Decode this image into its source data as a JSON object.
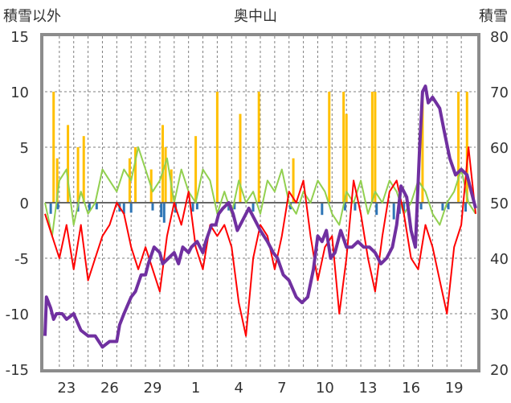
{
  "chart_data": {
    "type": "line",
    "title": "奥中山",
    "ylabel_left": "積雪以外",
    "ylabel_right": "積雪",
    "y_left": {
      "min": -15,
      "max": 15,
      "ticks": [
        "15",
        "10",
        "5",
        "0",
        "-5",
        "-10",
        "-15"
      ]
    },
    "y_right": {
      "min": 20,
      "max": 80,
      "ticks": [
        "80",
        "70",
        "60",
        "50",
        "40",
        "30",
        "20"
      ]
    },
    "x_range": [
      0,
      30
    ],
    "x_ticks": [
      {
        "x": 1.5,
        "label": "23"
      },
      {
        "x": 4.5,
        "label": "26"
      },
      {
        "x": 7.5,
        "label": "29"
      },
      {
        "x": 10.5,
        "label": "1"
      },
      {
        "x": 13.5,
        "label": "4"
      },
      {
        "x": 16.5,
        "label": "7"
      },
      {
        "x": 19.5,
        "label": "10"
      },
      {
        "x": 22.5,
        "label": "13"
      },
      {
        "x": 25.5,
        "label": "16"
      },
      {
        "x": 28.5,
        "label": "19"
      }
    ],
    "grid": "vertical dashed at day boundaries, horizontal dashed at left-axis ticks",
    "precip_bars": [
      {
        "x": 0.6,
        "v": 10
      },
      {
        "x": 0.85,
        "v": 4
      },
      {
        "x": 1.6,
        "v": 7
      },
      {
        "x": 2.3,
        "v": 5
      },
      {
        "x": 2.7,
        "v": 6
      },
      {
        "x": 5.9,
        "v": 4
      },
      {
        "x": 6.3,
        "v": 5
      },
      {
        "x": 7.4,
        "v": 3
      },
      {
        "x": 8.2,
        "v": 7
      },
      {
        "x": 8.4,
        "v": 5
      },
      {
        "x": 8.8,
        "v": 3
      },
      {
        "x": 10.5,
        "v": 6
      },
      {
        "x": 12.0,
        "v": 10
      },
      {
        "x": 13.6,
        "v": 8
      },
      {
        "x": 14.9,
        "v": 10
      },
      {
        "x": 17.3,
        "v": 4
      },
      {
        "x": 19.8,
        "v": 10
      },
      {
        "x": 20.8,
        "v": 10
      },
      {
        "x": 21.0,
        "v": 8
      },
      {
        "x": 22.8,
        "v": 10
      },
      {
        "x": 23.0,
        "v": 10
      },
      {
        "x": 26.3,
        "v": 10
      },
      {
        "x": 28.8,
        "v": 10
      },
      {
        "x": 29.4,
        "v": 10
      }
    ],
    "snowfall_bars": [
      {
        "x": 0.4,
        "v": -1
      },
      {
        "x": 0.9,
        "v": -0.6
      },
      {
        "x": 2.3,
        "v": -0.8
      },
      {
        "x": 3.1,
        "v": -0.7
      },
      {
        "x": 3.6,
        "v": -0.6
      },
      {
        "x": 5.2,
        "v": -0.8
      },
      {
        "x": 5.5,
        "v": -1
      },
      {
        "x": 6.0,
        "v": -0.9
      },
      {
        "x": 7.5,
        "v": -0.7
      },
      {
        "x": 8.1,
        "v": -1.3
      },
      {
        "x": 8.3,
        "v": -1.8
      },
      {
        "x": 9.1,
        "v": -0.9
      },
      {
        "x": 10.3,
        "v": -0.8
      },
      {
        "x": 10.6,
        "v": -0.6
      },
      {
        "x": 12.8,
        "v": -0.7
      },
      {
        "x": 13.2,
        "v": -0.6
      },
      {
        "x": 14.5,
        "v": -0.8
      },
      {
        "x": 17.1,
        "v": -0.6
      },
      {
        "x": 19.3,
        "v": -1.1
      },
      {
        "x": 20.9,
        "v": -0.7
      },
      {
        "x": 21.6,
        "v": -0.7
      },
      {
        "x": 23.1,
        "v": -1.1
      },
      {
        "x": 24.3,
        "v": -1.5
      },
      {
        "x": 24.7,
        "v": -1
      },
      {
        "x": 25.0,
        "v": -0.9
      },
      {
        "x": 26.2,
        "v": -0.6
      },
      {
        "x": 27.7,
        "v": -0.7
      },
      {
        "x": 28.1,
        "v": -0.6
      },
      {
        "x": 29.3,
        "v": -0.8
      }
    ],
    "temperature": {
      "x": [
        0,
        0.5,
        1,
        1.5,
        2,
        2.5,
        3,
        3.5,
        4,
        4.5,
        5,
        5.5,
        6,
        6.5,
        7,
        7.5,
        8,
        8.5,
        9,
        9.5,
        10,
        10.5,
        11,
        11.5,
        12,
        12.5,
        13,
        13.5,
        14,
        14.5,
        15,
        15.5,
        16,
        16.5,
        17,
        17.5,
        18,
        18.5,
        19,
        19.5,
        20,
        20.5,
        21,
        21.5,
        22,
        22.5,
        23,
        23.5,
        24,
        24.5,
        25,
        25.5,
        26,
        26.5,
        27,
        27.5,
        28,
        28.5,
        29,
        29.5,
        30
      ],
      "y": [
        -1,
        -3,
        -5,
        -2,
        -6,
        -2,
        -7,
        -5,
        -3,
        -2,
        0,
        -1,
        -4,
        -6,
        -4,
        -6,
        -8,
        -3,
        0,
        -2,
        1,
        -4,
        -6,
        -2,
        -3,
        -2,
        -4,
        -9,
        -12,
        -5,
        -2,
        -3,
        -6,
        -3,
        1,
        0,
        2,
        -3,
        -7,
        -4,
        -3,
        -10,
        -5,
        2,
        -1,
        -5,
        -8,
        -3,
        1,
        2,
        -1,
        -5,
        -6,
        -2,
        -4,
        -7,
        -10,
        -4,
        -2,
        5,
        -1
      ]
    },
    "wind": {
      "x": [
        0,
        0.5,
        1,
        1.5,
        2,
        2.5,
        3,
        3.5,
        4,
        4.5,
        5,
        5.5,
        6,
        6.5,
        7,
        7.5,
        8,
        8.5,
        9,
        9.5,
        10,
        10.5,
        11,
        11.5,
        12,
        12.5,
        13,
        13.5,
        14,
        14.5,
        15,
        15.5,
        16,
        16.5,
        17,
        17.5,
        18,
        18.5,
        19,
        19.5,
        20,
        20.5,
        21,
        21.5,
        22,
        22.5,
        23,
        23.5,
        24,
        24.5,
        25,
        25.5,
        26,
        26.5,
        27,
        27.5,
        28,
        28.5,
        29,
        29.5,
        30
      ],
      "y": [
        0,
        -3,
        2,
        3,
        -2,
        1,
        -1,
        0,
        3,
        2,
        1,
        3,
        2,
        5,
        3,
        1,
        2,
        4,
        0,
        3,
        1,
        0,
        3,
        2,
        -1,
        1,
        -1,
        2,
        0,
        1,
        -1,
        2,
        1,
        3,
        0,
        -1,
        1,
        0,
        2,
        1,
        -1,
        -2,
        1,
        0,
        2,
        -1,
        1,
        0,
        2,
        1,
        -1,
        0,
        2,
        1,
        -1,
        -2,
        0,
        1,
        3,
        0,
        -1
      ]
    },
    "snow_depth": {
      "x": [
        0,
        0.1,
        0.4,
        0.6,
        0.8,
        1.0,
        1.2,
        1.5,
        2.0,
        2.5,
        3.0,
        3.5,
        4.0,
        4.5,
        5.0,
        5.2,
        5.5,
        6.0,
        6.3,
        6.7,
        7.0,
        7.2,
        7.6,
        8.0,
        8.2,
        8.6,
        9.0,
        9.3,
        9.6,
        10.0,
        10.2,
        10.6,
        11.0,
        11.2,
        11.6,
        11.9,
        12.1,
        12.4,
        12.8,
        13.1,
        13.4,
        13.8,
        14.2,
        14.6,
        15.0,
        15.5,
        15.9,
        16.2,
        16.6,
        17.0,
        17.5,
        17.9,
        18.3,
        18.7,
        19.0,
        19.3,
        19.6,
        19.9,
        20.2,
        20.6,
        21.0,
        21.4,
        21.8,
        22.2,
        22.6,
        23.0,
        23.4,
        23.8,
        24.2,
        24.5,
        24.8,
        25.2,
        25.5,
        25.8,
        26.1,
        26.3,
        26.5,
        26.7,
        27.0,
        27.5,
        27.8,
        28.2,
        28.6,
        29.0,
        29.4,
        29.7,
        30.0
      ],
      "y": [
        26,
        33,
        31,
        29,
        30,
        30,
        30,
        29,
        30,
        27,
        26,
        26,
        24,
        25,
        25,
        28,
        30,
        33,
        34,
        37,
        37,
        39,
        42,
        41,
        39,
        40,
        41,
        39,
        42,
        41,
        42,
        43,
        41,
        43,
        46,
        46,
        48,
        49,
        50,
        48,
        45,
        47,
        49,
        47,
        45,
        43,
        41,
        40,
        37,
        36,
        33,
        32,
        33,
        38,
        44,
        43,
        45,
        40,
        41,
        45,
        42,
        42,
        43,
        42,
        42,
        41,
        39,
        40,
        42,
        46,
        53,
        51,
        45,
        42,
        60,
        70,
        71,
        68,
        69,
        67,
        63,
        58,
        55,
        56,
        55,
        52,
        49
      ]
    }
  }
}
